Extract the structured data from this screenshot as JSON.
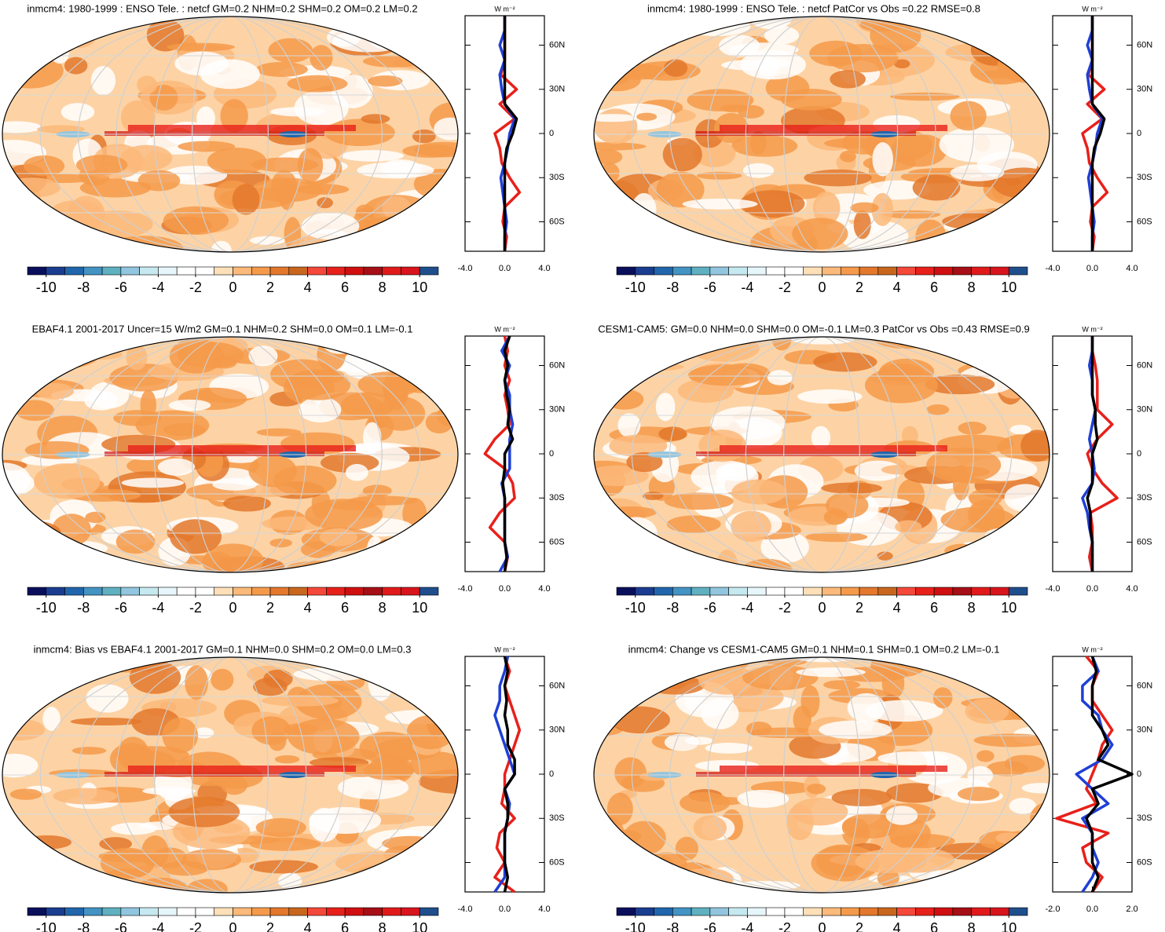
{
  "chart_data": [
    {
      "type": "map",
      "title": "inmcm4: 1980-1999 : ENSO Tele. : netcf GM=0.2 NHM=0.2 SHM=0.2 OM=0.2 LM=0.2",
      "colorbar": {
        "range": [
          -11,
          11
        ],
        "ticks": [
          -10,
          -8,
          -6,
          -4,
          -2,
          0,
          2,
          4,
          6,
          8,
          10
        ],
        "colors": [
          "#0a0f5c",
          "#1a3d8f",
          "#2166ac",
          "#4393c3",
          "#5fb0c0",
          "#92c5de",
          "#c6e9f0",
          "#e6f6fa",
          "#ffffff",
          "#ffffff",
          "#fde0b8",
          "#fbb97a",
          "#f59a4a",
          "#e3782c",
          "#c9661e",
          "#f4483a",
          "#e8201a",
          "#d01010",
          "#a50f15",
          "#e01a1a",
          "#d8141c",
          "#1f4e8c"
        ]
      },
      "zonal": {
        "type": "line",
        "units": "W m⁻²",
        "xlim": [
          -4,
          4
        ],
        "xticks": [
          {
            "value": -4,
            "label": "-4.0"
          },
          {
            "value": 0,
            "label": "0.0"
          },
          {
            "value": 4,
            "label": "4.0"
          }
        ],
        "ylim": [
          -80,
          80
        ],
        "yticks": [
          {
            "value": 60,
            "label": "60N"
          },
          {
            "value": 30,
            "label": "30N"
          },
          0,
          {
            "value": -30,
            "label": "30S"
          },
          {
            "value": -60,
            "label": "60S"
          }
        ],
        "lat": [
          -80,
          -70,
          -60,
          -50,
          -40,
          -30,
          -20,
          -10,
          0,
          10,
          20,
          30,
          40,
          50,
          60,
          70,
          80
        ],
        "series": [
          {
            "color": "#e8201a",
            "values": [
              0,
              0.2,
              -0.2,
              0,
              1.5,
              0.5,
              -0.3,
              -0.5,
              -1,
              1,
              -0.5,
              1.2,
              -0.4,
              0,
              0,
              0,
              0
            ]
          },
          {
            "color": "#1f3fd6",
            "values": [
              0,
              0,
              0.2,
              0,
              -0.2,
              -0.4,
              0,
              0.3,
              0.5,
              1,
              0,
              -0.3,
              -0.5,
              0,
              -0.5,
              0,
              0
            ]
          },
          {
            "color": "#000000",
            "values": [
              0,
              0,
              0,
              0,
              0,
              0,
              0,
              0.2,
              0.8,
              1.2,
              0,
              0,
              0,
              0,
              0,
              0,
              0
            ]
          }
        ]
      }
    },
    {
      "type": "map",
      "title": "inmcm4: 1980-1999 : ENSO Tele. : netcf PatCor vs Obs =0.22 RMSE=0.8",
      "colorbar": {
        "range": [
          -11,
          11
        ],
        "ticks": [
          -10,
          -8,
          -6,
          -4,
          -2,
          0,
          2,
          4,
          6,
          8,
          10
        ],
        "colors": [
          "#0a0f5c",
          "#1a3d8f",
          "#2166ac",
          "#4393c3",
          "#5fb0c0",
          "#92c5de",
          "#c6e9f0",
          "#e6f6fa",
          "#ffffff",
          "#ffffff",
          "#fde0b8",
          "#fbb97a",
          "#f59a4a",
          "#e3782c",
          "#c9661e",
          "#f4483a",
          "#e8201a",
          "#d01010",
          "#a50f15",
          "#e01a1a",
          "#d8141c",
          "#1f4e8c"
        ]
      },
      "zonal": {
        "type": "line",
        "units": "W m⁻²",
        "xlim": [
          -4,
          4
        ],
        "xticks": [
          {
            "value": -4,
            "label": "-4.0"
          },
          {
            "value": 0,
            "label": "0.0"
          },
          {
            "value": 4,
            "label": "4.0"
          }
        ],
        "ylim": [
          -80,
          80
        ],
        "yticks": [
          {
            "value": 60,
            "label": "60N"
          },
          {
            "value": 30,
            "label": "30N"
          },
          0,
          {
            "value": -30,
            "label": "30S"
          },
          {
            "value": -60,
            "label": "60S"
          }
        ],
        "lat": [
          -80,
          -70,
          -60,
          -50,
          -40,
          -30,
          -20,
          -10,
          0,
          10,
          20,
          30,
          40,
          50,
          60,
          70,
          80
        ],
        "series": [
          {
            "color": "#e8201a",
            "values": [
              0,
              0.2,
              -0.2,
              0,
              1.5,
              0.5,
              -0.3,
              -0.5,
              -1,
              1,
              -0.5,
              1.2,
              -0.4,
              0,
              0,
              0,
              0
            ]
          },
          {
            "color": "#1f3fd6",
            "values": [
              0,
              0,
              0.2,
              0,
              -0.2,
              -0.4,
              0,
              0.3,
              0.5,
              1,
              0,
              -0.3,
              -0.5,
              0,
              -0.5,
              0,
              0
            ]
          },
          {
            "color": "#000000",
            "values": [
              0,
              0,
              0,
              0,
              0,
              0,
              0,
              0.2,
              0.8,
              1.2,
              0,
              0,
              0,
              0,
              0,
              0,
              0
            ]
          }
        ]
      }
    },
    {
      "type": "map",
      "title": "EBAF4.1 2001-2017 Uncer=15 W/m2 GM=0.1 NHM=0.2 SHM=0.0 OM=0.1 LM=-0.1",
      "colorbar": {
        "range": [
          -11,
          11
        ],
        "ticks": [
          -10,
          -8,
          -6,
          -4,
          -2,
          0,
          2,
          4,
          6,
          8,
          10
        ],
        "colors": [
          "#0a0f5c",
          "#1a3d8f",
          "#2166ac",
          "#4393c3",
          "#5fb0c0",
          "#92c5de",
          "#c6e9f0",
          "#e6f6fa",
          "#ffffff",
          "#ffffff",
          "#fde0b8",
          "#fbb97a",
          "#f59a4a",
          "#e3782c",
          "#c9661e",
          "#f4483a",
          "#e8201a",
          "#d01010",
          "#a50f15",
          "#e01a1a",
          "#d8141c",
          "#1f4e8c"
        ]
      },
      "zonal": {
        "type": "line",
        "units": "W m⁻²",
        "xlim": [
          -4,
          4
        ],
        "xticks": [
          {
            "value": -4,
            "label": "-4.0"
          },
          {
            "value": 0,
            "label": "0.0"
          },
          {
            "value": 4,
            "label": "4.0"
          }
        ],
        "ylim": [
          -80,
          80
        ],
        "yticks": [
          {
            "value": 60,
            "label": "60N"
          },
          {
            "value": 30,
            "label": "30N"
          },
          0,
          {
            "value": -30,
            "label": "30S"
          },
          {
            "value": -60,
            "label": "60S"
          }
        ],
        "lat": [
          -80,
          -70,
          -60,
          -50,
          -40,
          -30,
          -20,
          -10,
          0,
          10,
          20,
          30,
          40,
          50,
          60,
          70,
          80
        ],
        "series": [
          {
            "color": "#e8201a",
            "values": [
              0,
              0.3,
              0,
              -1.5,
              -0.5,
              1,
              0.8,
              0,
              -2,
              -1,
              0.5,
              0.3,
              0,
              0.5,
              0,
              0.3,
              0
            ]
          },
          {
            "color": "#1f3fd6",
            "values": [
              -0.5,
              0.3,
              0,
              0,
              0,
              0,
              -0.3,
              0.5,
              0.5,
              0.5,
              0.8,
              0.5,
              0.5,
              0,
              0.5,
              -0.3,
              0.5
            ]
          },
          {
            "color": "#000000",
            "values": [
              0,
              0.2,
              0,
              0,
              0,
              0,
              -0.2,
              0,
              0,
              0.8,
              0.3,
              0.5,
              0.2,
              0,
              0.3,
              0,
              0.5
            ]
          }
        ]
      }
    },
    {
      "type": "map",
      "title": "CESM1-CAM5: GM=0.0 NHM=0.0 SHM=0.0 OM=-0.1 LM=0.3 PatCor vs Obs =0.43 RMSE=0.9",
      "colorbar": {
        "range": [
          -11,
          11
        ],
        "ticks": [
          -10,
          -8,
          -6,
          -4,
          -2,
          0,
          2,
          4,
          6,
          8,
          10
        ],
        "colors": [
          "#0a0f5c",
          "#1a3d8f",
          "#2166ac",
          "#4393c3",
          "#5fb0c0",
          "#92c5de",
          "#c6e9f0",
          "#e6f6fa",
          "#ffffff",
          "#ffffff",
          "#fde0b8",
          "#fbb97a",
          "#f59a4a",
          "#e3782c",
          "#c9661e",
          "#f4483a",
          "#e8201a",
          "#d01010",
          "#a50f15",
          "#e01a1a",
          "#d8141c",
          "#1f4e8c"
        ]
      },
      "zonal": {
        "type": "line",
        "units": "W m⁻²",
        "xlim": [
          -4,
          4
        ],
        "xticks": [
          {
            "value": -4,
            "label": "-4.0"
          },
          {
            "value": 0,
            "label": "0.0"
          },
          {
            "value": 4,
            "label": "4.0"
          }
        ],
        "ylim": [
          -80,
          80
        ],
        "yticks": [
          {
            "value": 60,
            "label": "60N"
          },
          {
            "value": 30,
            "label": "30N"
          },
          0,
          {
            "value": -30,
            "label": "30S"
          },
          {
            "value": -60,
            "label": "60S"
          }
        ],
        "lat": [
          -80,
          -70,
          -60,
          -50,
          -40,
          -30,
          -20,
          -10,
          0,
          10,
          20,
          30,
          40,
          50,
          60,
          70,
          80
        ],
        "series": [
          {
            "color": "#e8201a",
            "values": [
              0,
              -0.3,
              0,
              0,
              -0.2,
              2.5,
              1,
              0,
              -0.5,
              0.5,
              2,
              0.5,
              0.5,
              0.5,
              0.3,
              0,
              0
            ]
          },
          {
            "color": "#1f3fd6",
            "values": [
              0,
              0,
              0,
              -0.3,
              -0.5,
              -1,
              0,
              0.2,
              0,
              -0.3,
              0,
              0.3,
              0,
              0,
              -0.3,
              0,
              0
            ]
          },
          {
            "color": "#000000",
            "values": [
              0,
              0,
              0,
              -0.2,
              -0.2,
              -0.5,
              0,
              0,
              0,
              0.5,
              0.3,
              0.3,
              0,
              0,
              0,
              0,
              0
            ]
          }
        ]
      }
    },
    {
      "type": "map",
      "title": "inmcm4: Bias vs EBAF4.1 2001-2017 GM=0.1 NHM=0.0 SHM=0.2 OM=0.0 LM=0.3",
      "colorbar": {
        "range": [
          -11,
          11
        ],
        "ticks": [
          -10,
          -8,
          -6,
          -4,
          -2,
          0,
          2,
          4,
          6,
          8,
          10
        ],
        "colors": [
          "#0a0f5c",
          "#1a3d8f",
          "#2166ac",
          "#4393c3",
          "#5fb0c0",
          "#92c5de",
          "#c6e9f0",
          "#e6f6fa",
          "#ffffff",
          "#ffffff",
          "#fde0b8",
          "#fbb97a",
          "#f59a4a",
          "#e3782c",
          "#c9661e",
          "#f4483a",
          "#e8201a",
          "#d01010",
          "#a50f15",
          "#e01a1a",
          "#d8141c",
          "#1f4e8c"
        ]
      },
      "zonal": {
        "type": "line",
        "units": "W m⁻²",
        "xlim": [
          -4,
          4
        ],
        "xticks": [
          {
            "value": -4,
            "label": "-4.0"
          },
          {
            "value": 0,
            "label": "0.0"
          },
          {
            "value": 4,
            "label": "4.0"
          }
        ],
        "ylim": [
          -80,
          80
        ],
        "yticks": [
          {
            "value": 60,
            "label": "60N"
          },
          {
            "value": 30,
            "label": "30N"
          },
          0,
          {
            "value": -30,
            "label": "30S"
          },
          {
            "value": -60,
            "label": "60S"
          }
        ],
        "lat": [
          -80,
          -70,
          -60,
          -50,
          -40,
          -30,
          -20,
          -10,
          0,
          10,
          20,
          30,
          40,
          50,
          60,
          70,
          80
        ],
        "series": [
          {
            "color": "#e8201a",
            "values": [
              1,
              -1,
              0,
              -0.8,
              -0.5,
              1,
              -0.3,
              0,
              0,
              0.5,
              1,
              1.5,
              1,
              0.5,
              0,
              0.5,
              0
            ]
          },
          {
            "color": "#1f3fd6",
            "values": [
              -1,
              0,
              0,
              0,
              0,
              0.3,
              0.5,
              0,
              1,
              0.5,
              0,
              -0.5,
              -1,
              -0.5,
              -0.5,
              0,
              0.3
            ]
          },
          {
            "color": "#000000",
            "values": [
              0,
              0.3,
              0,
              0,
              0,
              0.3,
              0.3,
              0,
              1,
              1,
              0.3,
              0.3,
              0,
              0.2,
              0,
              0.3,
              0
            ]
          }
        ]
      }
    },
    {
      "type": "map",
      "title": "inmcm4: Change vs CESM1-CAM5 GM=0.1 NHM=0.1 SHM=0.1 OM=0.2 LM=-0.1",
      "colorbar": {
        "range": [
          -11,
          11
        ],
        "ticks": [
          -10,
          -8,
          -6,
          -4,
          -2,
          0,
          2,
          4,
          6,
          8,
          10
        ],
        "colors": [
          "#0a0f5c",
          "#1a3d8f",
          "#2166ac",
          "#4393c3",
          "#5fb0c0",
          "#92c5de",
          "#c6e9f0",
          "#e6f6fa",
          "#ffffff",
          "#ffffff",
          "#fde0b8",
          "#fbb97a",
          "#f59a4a",
          "#e3782c",
          "#c9661e",
          "#f4483a",
          "#e8201a",
          "#d01010",
          "#a50f15",
          "#e01a1a",
          "#d8141c",
          "#1f4e8c"
        ]
      },
      "zonal": {
        "type": "line",
        "units": "W m⁻²",
        "xlim": [
          -2,
          2
        ],
        "xticks": [
          {
            "value": -2,
            "label": "-2.0"
          },
          {
            "value": 0,
            "label": "0.0"
          },
          {
            "value": 2,
            "label": "2.0"
          }
        ],
        "ylim": [
          -80,
          80
        ],
        "yticks": [
          {
            "value": 60,
            "label": "60N"
          },
          {
            "value": 30,
            "label": "30N"
          },
          0,
          {
            "value": -30,
            "label": "30S"
          },
          {
            "value": -60,
            "label": "60S"
          }
        ],
        "lat": [
          -80,
          -70,
          -60,
          -50,
          -40,
          -30,
          -20,
          -10,
          0,
          10,
          20,
          30,
          40,
          50,
          60,
          70,
          80
        ],
        "series": [
          {
            "color": "#e8201a",
            "values": [
              0,
              0.5,
              -0.3,
              -0.5,
              0.8,
              -1.8,
              0.2,
              -0.3,
              0,
              0.3,
              0.5,
              1,
              0.5,
              0,
              0,
              0.3,
              -0.3
            ]
          },
          {
            "color": "#1f3fd6",
            "values": [
              -0.5,
              0,
              0.3,
              0,
              0,
              -0.5,
              0.8,
              0,
              -0.8,
              0.5,
              1,
              0.5,
              0.3,
              -0.5,
              -0.5,
              0.3,
              0
            ]
          },
          {
            "color": "#000000",
            "values": [
              0,
              0.3,
              0,
              0,
              0,
              -0.3,
              0.3,
              0,
              2,
              0.3,
              0.8,
              0.5,
              0,
              0,
              0,
              0.2,
              0
            ]
          }
        ]
      }
    }
  ]
}
